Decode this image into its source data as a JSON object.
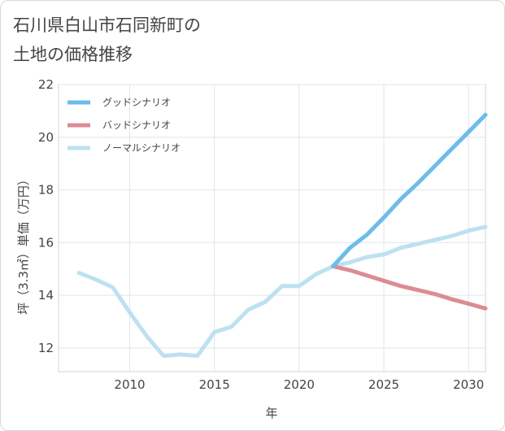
{
  "title_lines": [
    "石川県白山市石同新町の",
    "土地の価格推移"
  ],
  "chart_data": {
    "type": "line",
    "xlabel": "年",
    "ylabel": "坪（3.3㎡）単価（万円）",
    "xlim": [
      2005.8,
      2031
    ],
    "ylim": [
      11.1,
      22
    ],
    "xticks": [
      2010,
      2015,
      2020,
      2025,
      2030
    ],
    "yticks": [
      12,
      14,
      16,
      18,
      20,
      22
    ],
    "grid": true,
    "legend_position": "top-left",
    "series": [
      {
        "name": "グッドシナリオ",
        "color": "#6cbcec",
        "x": [
          2022,
          2023,
          2024,
          2025,
          2026,
          2027,
          2028,
          2029,
          2030,
          2031
        ],
        "y": [
          15.1,
          15.8,
          16.3,
          16.95,
          17.65,
          18.25,
          18.9,
          19.55,
          20.2,
          20.85
        ]
      },
      {
        "name": "バッドシナリオ",
        "color": "#dc8c94",
        "x": [
          2022,
          2023,
          2024,
          2025,
          2026,
          2027,
          2028,
          2029,
          2030,
          2031
        ],
        "y": [
          15.1,
          14.95,
          14.75,
          14.55,
          14.35,
          14.2,
          14.05,
          13.85,
          13.68,
          13.5
        ]
      },
      {
        "name": "ノーマルシナリオ",
        "color": "#bde1f0",
        "x": [
          2007,
          2008,
          2009,
          2010,
          2011,
          2012,
          2013,
          2014,
          2015,
          2016,
          2017,
          2018,
          2019,
          2020,
          2021,
          2022,
          2023,
          2024,
          2025,
          2026,
          2027,
          2028,
          2029,
          2030,
          2031
        ],
        "y": [
          14.85,
          14.6,
          14.3,
          13.35,
          12.45,
          11.7,
          11.75,
          11.7,
          12.6,
          12.8,
          13.45,
          13.75,
          14.35,
          14.35,
          14.8,
          15.1,
          15.25,
          15.45,
          15.55,
          15.8,
          15.95,
          16.1,
          16.25,
          16.45,
          16.6
        ]
      }
    ]
  }
}
